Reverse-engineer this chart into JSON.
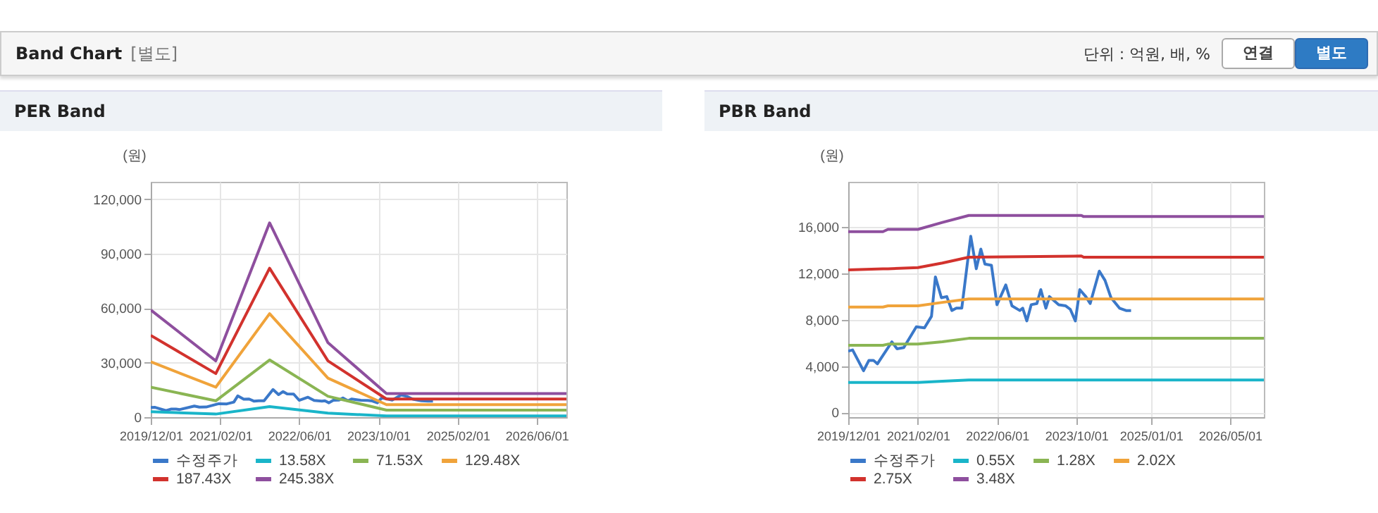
{
  "chart_data": [
    {
      "type": "other",
      "title": "Band Chart",
      "annotations": [
        "[별도]",
        "단위 : 억원, 배, %",
        "연결",
        "별도"
      ]
    },
    {
      "type": "line",
      "title": "PER Band",
      "ylabel": "(원)",
      "legend": "bottom",
      "grid": true,
      "marker": "none",
      "line_style": "solid",
      "xlim": [
        "2019-12-01",
        "2026-12-01"
      ],
      "xticks": [
        {
          "value": "2019-12-01",
          "label": "2019/12/01"
        },
        {
          "value": "2021-02-01",
          "label": "2021/02/01"
        },
        {
          "value": "2022-06-01",
          "label": "2022/06/01"
        },
        {
          "value": "2023-10-01",
          "label": "2023/10/01"
        },
        {
          "value": "2025-02-01",
          "label": "2025/02/01"
        },
        {
          "value": "2026-06-01",
          "label": "2026/06/01"
        }
      ],
      "ylim": [
        0,
        129600
      ],
      "yticks": [
        0,
        {
          "value": 30000,
          "label": "30,000"
        },
        {
          "value": 60000,
          "label": "60,000"
        },
        {
          "value": 90000,
          "label": "90,000"
        },
        {
          "value": 120000,
          "label": "120,000"
        }
      ],
      "series": [
        {
          "name": "수정주가",
          "color": "#3a78c9",
          "x": [
            "2019-12-01",
            "2019-12-28",
            "2020-03-04",
            "2020-04-06",
            "2020-05-04",
            "2020-05-28",
            "2020-08-25",
            "2020-09-25",
            "2020-11-06",
            "2021-01-22",
            "2021-03-13",
            "2021-04-25",
            "2021-05-19",
            "2021-06-25",
            "2021-07-28",
            "2021-08-28",
            "2021-09-25",
            "2021-10-28",
            "2021-12-22",
            "2022-01-25",
            "2022-02-22",
            "2022-03-19",
            "2022-04-28",
            "2022-06-01",
            "2022-07-25",
            "2022-09-01",
            "2022-10-19",
            "2022-11-06",
            "2022-12-01",
            "2022-12-28",
            "2023-02-01",
            "2023-02-25",
            "2023-03-28",
            "2023-04-19",
            "2023-06-15",
            "2023-07-28",
            "2023-08-25",
            "2023-09-25",
            "2023-10-22",
            "2023-11-28",
            "2023-12-25",
            "2024-02-19",
            "2024-03-25",
            "2024-05-01",
            "2024-06-22",
            "2024-08-01",
            "2024-09-01"
          ],
          "values": [
            5300,
            5400,
            3600,
            4500,
            4500,
            4200,
            6100,
            5500,
            5600,
            7400,
            7300,
            8300,
            11700,
            9900,
            10000,
            8800,
            9000,
            9000,
            15200,
            12400,
            14100,
            12800,
            12700,
            9300,
            11000,
            9200,
            8800,
            9000,
            7900,
            9300,
            9400,
            10600,
            9000,
            10000,
            9300,
            9200,
            8900,
            7900,
            10600,
            10000,
            9400,
            12200,
            11400,
            9900,
            9000,
            8800,
            8800
          ]
        },
        {
          "name": "13.58X",
          "color": "#19b5c9",
          "x": [
            "2019-12-01",
            "2021-01-04",
            "2021-12-01",
            "2022-11-25",
            "2023-11-20",
            "2026-12-01"
          ],
          "values": [
            3000,
            1700,
            5800,
            2200,
            700,
            700
          ]
        },
        {
          "name": "71.53X",
          "color": "#8ab553",
          "x": [
            "2019-12-01",
            "2021-01-04",
            "2021-12-01",
            "2022-11-25",
            "2023-11-20",
            "2026-12-01"
          ],
          "values": [
            16500,
            9000,
            31500,
            11500,
            3900,
            3900
          ]
        },
        {
          "name": "129.48X",
          "color": "#f0a33a",
          "x": [
            "2019-12-01",
            "2021-01-04",
            "2021-12-01",
            "2022-11-25",
            "2023-11-20",
            "2026-12-01"
          ],
          "values": [
            30500,
            16500,
            57000,
            21500,
            6900,
            6900
          ]
        },
        {
          "name": "187.43X",
          "color": "#d2322d",
          "x": [
            "2019-12-01",
            "2021-01-04",
            "2021-12-01",
            "2022-11-25",
            "2023-11-20",
            "2026-12-01"
          ],
          "values": [
            45000,
            24000,
            82000,
            31000,
            10000,
            10000
          ]
        },
        {
          "name": "245.38X",
          "color": "#8e4f9e",
          "x": [
            "2019-12-01",
            "2021-01-04",
            "2021-12-01",
            "2022-11-25",
            "2023-11-20",
            "2026-12-01"
          ],
          "values": [
            59000,
            31000,
            107000,
            41000,
            13000,
            13000
          ]
        }
      ]
    },
    {
      "type": "line",
      "title": "PBR Band",
      "ylabel": "(원)",
      "legend": "bottom",
      "grid": true,
      "marker": "none",
      "line_style": "solid",
      "xlim": [
        "2019-12-01",
        "2026-11-25"
      ],
      "xticks": [
        {
          "value": "2019-12-01",
          "label": "2019/12/01"
        },
        {
          "value": "2021-02-01",
          "label": "2021/02/01"
        },
        {
          "value": "2022-06-01",
          "label": "2022/06/01"
        },
        {
          "value": "2023-10-01",
          "label": "2023/10/01"
        },
        {
          "value": "2025-01-01",
          "label": "2025/01/01"
        },
        {
          "value": "2026-05-01",
          "label": "2026/05/01"
        }
      ],
      "ylim": [
        -400,
        19900
      ],
      "yticks": [
        0,
        {
          "value": 4000,
          "label": "4,000"
        },
        {
          "value": 8000,
          "label": "8,000"
        },
        {
          "value": 12000,
          "label": "12,000"
        },
        {
          "value": 16000,
          "label": "16,000"
        }
      ],
      "series": [
        {
          "name": "수정주가",
          "color": "#3a78c9",
          "x": [
            "2019-12-01",
            "2019-12-28",
            "2020-03-04",
            "2020-04-06",
            "2020-05-04",
            "2020-05-28",
            "2020-08-25",
            "2020-09-25",
            "2020-11-06",
            "2021-01-22",
            "2021-03-13",
            "2021-04-25",
            "2021-05-19",
            "2021-06-25",
            "2021-07-28",
            "2021-08-28",
            "2021-09-25",
            "2021-10-28",
            "2021-12-22",
            "2022-01-25",
            "2022-02-22",
            "2022-03-19",
            "2022-04-28",
            "2022-06-01",
            "2022-07-25",
            "2022-09-01",
            "2022-10-19",
            "2022-11-06",
            "2022-12-01",
            "2022-12-28",
            "2023-02-01",
            "2023-02-25",
            "2023-03-28",
            "2023-04-19",
            "2023-06-15",
            "2023-07-28",
            "2023-08-25",
            "2023-09-25",
            "2023-10-22",
            "2023-11-28",
            "2023-12-25",
            "2024-02-19",
            "2024-03-25",
            "2024-05-01",
            "2024-06-22",
            "2024-08-01",
            "2024-09-01"
          ],
          "values": [
            5300,
            5400,
            3600,
            4500,
            4500,
            4200,
            6100,
            5500,
            5600,
            7400,
            7300,
            8300,
            11700,
            9900,
            10000,
            8800,
            9000,
            9000,
            15200,
            12400,
            14100,
            12800,
            12700,
            9300,
            11000,
            9200,
            8800,
            9000,
            7900,
            9300,
            9400,
            10600,
            9000,
            10000,
            9300,
            9200,
            8900,
            7900,
            10600,
            10000,
            9400,
            12200,
            11400,
            9900,
            9000,
            8800,
            8800
          ]
        },
        {
          "name": "0.55X",
          "color": "#19b5c9",
          "x": [
            "2019-12-01",
            "2020-07-01",
            "2020-08-01",
            "2021-02-01",
            "2021-07-01",
            "2021-12-10",
            "2023-11-01",
            "2023-11-15",
            "2026-11-25"
          ],
          "values": [
            2600,
            2600,
            2600,
            2600,
            2700,
            2800,
            2800,
            2800,
            2800
          ]
        },
        {
          "name": "1.28X",
          "color": "#8ab553",
          "x": [
            "2019-12-01",
            "2020-07-01",
            "2020-08-01",
            "2021-02-01",
            "2021-07-01",
            "2021-12-10",
            "2023-11-01",
            "2023-11-15",
            "2026-11-25"
          ],
          "values": [
            5800,
            5800,
            5900,
            5900,
            6100,
            6400,
            6400,
            6400,
            6400
          ]
        },
        {
          "name": "2.02X",
          "color": "#f0a33a",
          "x": [
            "2019-12-01",
            "2020-07-01",
            "2020-08-01",
            "2021-02-01",
            "2021-07-01",
            "2021-12-10",
            "2023-11-01",
            "2023-11-15",
            "2026-11-25"
          ],
          "values": [
            9100,
            9100,
            9200,
            9200,
            9500,
            9800,
            9800,
            9800,
            9800
          ]
        },
        {
          "name": "2.75X",
          "color": "#d2322d",
          "x": [
            "2019-12-01",
            "2020-07-01",
            "2020-08-01",
            "2021-02-01",
            "2021-07-01",
            "2021-12-10",
            "2023-11-01",
            "2023-11-15",
            "2026-11-25"
          ],
          "values": [
            12300,
            12400,
            12400,
            12500,
            12900,
            13400,
            13500,
            13400,
            13400
          ]
        },
        {
          "name": "3.48X",
          "color": "#8e4f9e",
          "x": [
            "2019-12-01",
            "2020-07-01",
            "2020-08-01",
            "2021-02-01",
            "2021-07-01",
            "2021-12-10",
            "2023-11-01",
            "2023-11-15",
            "2026-11-25"
          ],
          "values": [
            15600,
            15600,
            15800,
            15800,
            16400,
            17000,
            17000,
            16900,
            16900
          ]
        }
      ]
    }
  ]
}
